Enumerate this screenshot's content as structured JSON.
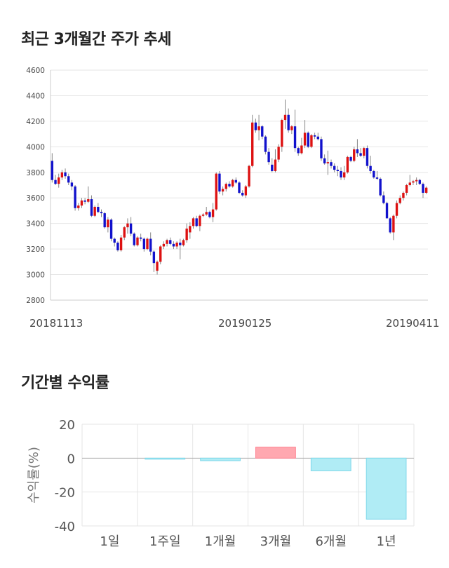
{
  "sections": {
    "price_title": "최근 3개월간 주가 추세",
    "return_title": "기간별 수익률"
  },
  "chart_data": [
    {
      "type": "candlestick",
      "title": "최근 3개월간 주가 추세",
      "ylim": [
        2800,
        4600
      ],
      "yticks": [
        2800,
        3000,
        3200,
        3400,
        3600,
        3800,
        4000,
        4200,
        4400,
        4600
      ],
      "xtick_labels": [
        "20181113",
        "20190125",
        "20190411"
      ],
      "grid": true,
      "colors": {
        "up": "#dd1111",
        "down": "#1111cc",
        "wick": "#888888"
      },
      "candles": [
        [
          3890,
          3950,
          3720,
          3740
        ],
        [
          3740,
          3780,
          3700,
          3710
        ],
        [
          3710,
          3790,
          3680,
          3760
        ],
        [
          3760,
          3820,
          3740,
          3800
        ],
        [
          3800,
          3830,
          3750,
          3770
        ],
        [
          3770,
          3790,
          3700,
          3720
        ],
        [
          3720,
          3740,
          3660,
          3690
        ],
        [
          3690,
          3700,
          3500,
          3520
        ],
        [
          3520,
          3560,
          3500,
          3540
        ],
        [
          3540,
          3600,
          3520,
          3580
        ],
        [
          3580,
          3600,
          3550,
          3570
        ],
        [
          3570,
          3690,
          3560,
          3590
        ],
        [
          3590,
          3620,
          3450,
          3460
        ],
        [
          3460,
          3540,
          3450,
          3530
        ],
        [
          3530,
          3560,
          3480,
          3490
        ],
        [
          3490,
          3510,
          3450,
          3480
        ],
        [
          3480,
          3490,
          3360,
          3370
        ],
        [
          3370,
          3450,
          3330,
          3430
        ],
        [
          3430,
          3440,
          3260,
          3280
        ],
        [
          3280,
          3290,
          3220,
          3250
        ],
        [
          3250,
          3260,
          3180,
          3190
        ],
        [
          3190,
          3310,
          3180,
          3290
        ],
        [
          3290,
          3380,
          3270,
          3370
        ],
        [
          3370,
          3440,
          3320,
          3400
        ],
        [
          3400,
          3450,
          3300,
          3320
        ],
        [
          3320,
          3330,
          3220,
          3230
        ],
        [
          3230,
          3300,
          3220,
          3290
        ],
        [
          3290,
          3320,
          3260,
          3280
        ],
        [
          3280,
          3290,
          3180,
          3200
        ],
        [
          3200,
          3290,
          3190,
          3280
        ],
        [
          3280,
          3330,
          3150,
          3180
        ],
        [
          3180,
          3190,
          3020,
          3090
        ],
        [
          3030,
          3110,
          3000,
          3100
        ],
        [
          3100,
          3230,
          3080,
          3220
        ],
        [
          3220,
          3260,
          3200,
          3240
        ],
        [
          3240,
          3280,
          3220,
          3270
        ],
        [
          3270,
          3290,
          3230,
          3240
        ],
        [
          3240,
          3260,
          3200,
          3220
        ],
        [
          3220,
          3260,
          3200,
          3250
        ],
        [
          3250,
          3280,
          3120,
          3230
        ],
        [
          3230,
          3280,
          3220,
          3270
        ],
        [
          3270,
          3400,
          3250,
          3360
        ],
        [
          3330,
          3410,
          3280,
          3380
        ],
        [
          3380,
          3450,
          3360,
          3440
        ],
        [
          3440,
          3460,
          3370,
          3380
        ],
        [
          3380,
          3470,
          3340,
          3460
        ],
        [
          3460,
          3480,
          3450,
          3470
        ],
        [
          3470,
          3530,
          3460,
          3490
        ],
        [
          3490,
          3500,
          3440,
          3450
        ],
        [
          3450,
          3560,
          3410,
          3510
        ],
        [
          3510,
          3800,
          3500,
          3790
        ],
        [
          3790,
          3810,
          3630,
          3650
        ],
        [
          3650,
          3690,
          3620,
          3670
        ],
        [
          3670,
          3720,
          3650,
          3710
        ],
        [
          3710,
          3730,
          3680,
          3690
        ],
        [
          3690,
          3750,
          3680,
          3740
        ],
        [
          3740,
          3760,
          3710,
          3720
        ],
        [
          3720,
          3730,
          3630,
          3640
        ],
        [
          3640,
          3660,
          3610,
          3620
        ],
        [
          3620,
          3700,
          3600,
          3690
        ],
        [
          3690,
          3860,
          3680,
          3850
        ],
        [
          3850,
          4250,
          3840,
          4190
        ],
        [
          4190,
          4220,
          4110,
          4130
        ],
        [
          4130,
          4250,
          4050,
          4160
        ],
        [
          4160,
          4170,
          4060,
          4080
        ],
        [
          4080,
          4090,
          3940,
          3960
        ],
        [
          3960,
          3990,
          3860,
          3880
        ],
        [
          3860,
          3910,
          3800,
          3810
        ],
        [
          3810,
          3980,
          3800,
          3900
        ],
        [
          3900,
          4020,
          3880,
          4000
        ],
        [
          4000,
          4220,
          3960,
          4210
        ],
        [
          4210,
          4370,
          4140,
          4250
        ],
        [
          4250,
          4300,
          4110,
          4130
        ],
        [
          4130,
          4170,
          4100,
          4160
        ],
        [
          4160,
          4290,
          3960,
          3990
        ],
        [
          3990,
          4000,
          3930,
          3950
        ],
        [
          3950,
          4070,
          3940,
          4010
        ],
        [
          4010,
          4210,
          3990,
          4110
        ],
        [
          4110,
          4120,
          3990,
          4000
        ],
        [
          4000,
          4100,
          3990,
          4090
        ],
        [
          4090,
          4110,
          4060,
          4080
        ],
        [
          4080,
          4110,
          4050,
          4060
        ],
        [
          4060,
          4080,
          3890,
          3910
        ],
        [
          3910,
          3940,
          3860,
          3870
        ],
        [
          3870,
          3970,
          3780,
          3880
        ],
        [
          3880,
          3900,
          3830,
          3850
        ],
        [
          3850,
          3870,
          3800,
          3820
        ],
        [
          3820,
          3850,
          3770,
          3810
        ],
        [
          3810,
          3840,
          3740,
          3760
        ],
        [
          3760,
          3850,
          3740,
          3800
        ],
        [
          3800,
          3930,
          3790,
          3920
        ],
        [
          3920,
          3930,
          3880,
          3890
        ],
        [
          3890,
          4000,
          3880,
          3980
        ],
        [
          3980,
          4060,
          3920,
          3950
        ],
        [
          3950,
          3990,
          3920,
          3930
        ],
        [
          3930,
          4000,
          3910,
          3990
        ],
        [
          3990,
          4010,
          3830,
          3850
        ],
        [
          3850,
          3930,
          3790,
          3810
        ],
        [
          3810,
          3820,
          3750,
          3760
        ],
        [
          3760,
          3810,
          3740,
          3750
        ],
        [
          3750,
          3760,
          3610,
          3620
        ],
        [
          3620,
          3650,
          3550,
          3560
        ],
        [
          3560,
          3570,
          3440,
          3440
        ],
        [
          3440,
          3450,
          3320,
          3330
        ],
        [
          3330,
          3470,
          3270,
          3460
        ],
        [
          3460,
          3580,
          3440,
          3560
        ],
        [
          3560,
          3620,
          3550,
          3600
        ],
        [
          3600,
          3650,
          3580,
          3640
        ],
        [
          3640,
          3710,
          3620,
          3700
        ],
        [
          3700,
          3780,
          3690,
          3720
        ],
        [
          3720,
          3740,
          3700,
          3730
        ],
        [
          3730,
          3760,
          3700,
          3740
        ],
        [
          3740,
          3750,
          3700,
          3710
        ],
        [
          3710,
          3720,
          3600,
          3640
        ],
        [
          3640,
          3690,
          3630,
          3680
        ]
      ]
    },
    {
      "type": "bar",
      "title": "기간별 수익률",
      "ylabel": "수익률(%)",
      "ylim": [
        -40,
        20
      ],
      "yticks": [
        20,
        0,
        -20,
        -40
      ],
      "categories": [
        "1일",
        "1주일",
        "1개월",
        "3개월",
        "6개월",
        "1년"
      ],
      "values": [
        0,
        -0.5,
        -1.5,
        6.5,
        -7.5,
        -36
      ],
      "grid": true,
      "colors": {
        "positive": "#ffa8b0",
        "negative": "#b0ecf5",
        "positive_edge": "#ff8090",
        "negative_edge": "#7fd8ea"
      }
    }
  ]
}
